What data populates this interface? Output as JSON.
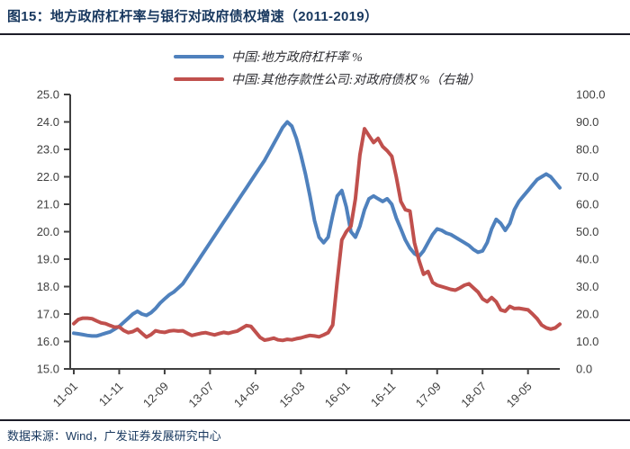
{
  "title": "图15：地方政府杠杆率与银行对政府债权增速（2011-2019）",
  "footer": {
    "source": "数据来源：Wind，广发证券发展研究中心"
  },
  "colors": {
    "title": "#17375E",
    "rule": "#1c1c28",
    "axis": "#404040",
    "blue_series": "#4F81BD",
    "red_series": "#C0504D"
  },
  "chart_data": {
    "type": "line",
    "title": "地方政府杠杆率与银行对政府债权增速（2011-2019）",
    "x_start": "2011-01",
    "x_end": "2019-12",
    "x_tick_labels": [
      "11-01",
      "11-11",
      "12-09",
      "13-07",
      "14-05",
      "15-03",
      "16-01",
      "16-11",
      "17-09",
      "18-07",
      "19-05"
    ],
    "x_tick_month_step": 10,
    "left_axis": {
      "min": 15.0,
      "max": 25.0,
      "step": 1.0,
      "tick_labels": [
        "15.0",
        "16.0",
        "17.0",
        "18.0",
        "19.0",
        "20.0",
        "21.0",
        "22.0",
        "23.0",
        "24.0",
        "25.0"
      ]
    },
    "right_axis": {
      "min": 0.0,
      "max": 100.0,
      "step": 10.0,
      "tick_labels": [
        "0.0",
        "10.0",
        "20.0",
        "30.0",
        "40.0",
        "50.0",
        "60.0",
        "70.0",
        "80.0",
        "90.0",
        "100.0"
      ]
    },
    "grid": false,
    "legend_position": "top-center",
    "series": [
      {
        "name": "中国:地方政府杠杆率 %",
        "axis": "left",
        "color": "#4F81BD",
        "values": [
          16.3,
          16.28,
          16.25,
          16.22,
          16.2,
          16.2,
          16.25,
          16.3,
          16.35,
          16.45,
          16.55,
          16.7,
          16.85,
          17.0,
          17.1,
          17.0,
          16.95,
          17.05,
          17.2,
          17.4,
          17.55,
          17.7,
          17.8,
          17.95,
          18.1,
          18.35,
          18.6,
          18.85,
          19.1,
          19.35,
          19.6,
          19.85,
          20.1,
          20.35,
          20.6,
          20.85,
          21.1,
          21.35,
          21.6,
          21.85,
          22.1,
          22.35,
          22.6,
          22.9,
          23.2,
          23.5,
          23.8,
          24.0,
          23.85,
          23.4,
          22.8,
          22.1,
          21.3,
          20.4,
          19.8,
          19.6,
          19.8,
          20.6,
          21.3,
          21.5,
          20.9,
          20.0,
          19.8,
          20.2,
          20.8,
          21.2,
          21.3,
          21.2,
          21.1,
          21.2,
          21.0,
          20.5,
          20.1,
          19.7,
          19.4,
          19.2,
          19.1,
          19.3,
          19.6,
          19.9,
          20.1,
          20.05,
          19.95,
          19.9,
          19.8,
          19.7,
          19.6,
          19.5,
          19.35,
          19.25,
          19.3,
          19.6,
          20.1,
          20.45,
          20.3,
          20.05,
          20.3,
          20.8,
          21.1,
          21.3,
          21.5,
          21.7,
          21.9,
          22.0,
          22.1,
          22.0,
          21.8,
          21.6
        ]
      },
      {
        "name": "中国:其他存款性公司:对政府债权 %（右轴）",
        "axis": "right",
        "color": "#C0504D",
        "values": [
          16.5,
          18.0,
          18.5,
          18.5,
          18.3,
          17.5,
          16.8,
          16.5,
          15.8,
          15.2,
          15.3,
          14.0,
          13.2,
          13.6,
          14.5,
          13.0,
          11.6,
          12.5,
          13.9,
          13.5,
          13.3,
          13.8,
          14.0,
          13.8,
          13.9,
          13.0,
          12.2,
          12.6,
          13.0,
          13.2,
          12.8,
          12.4,
          12.9,
          13.3,
          13.0,
          13.4,
          13.8,
          14.8,
          15.8,
          15.5,
          13.5,
          11.5,
          10.5,
          10.8,
          11.2,
          10.6,
          10.4,
          10.8,
          10.6,
          11.0,
          11.3,
          11.8,
          12.2,
          12.0,
          11.7,
          12.4,
          13.2,
          16.0,
          32.0,
          47.0,
          50.0,
          52.0,
          62.0,
          78.0,
          87.5,
          85.0,
          82.5,
          84.0,
          81.0,
          79.5,
          77.5,
          70.0,
          61.0,
          58.0,
          57.5,
          46.0,
          39.5,
          34.5,
          35.5,
          31.5,
          30.5,
          30.0,
          29.5,
          29.0,
          28.7,
          29.5,
          30.5,
          31.0,
          29.5,
          28.0,
          25.5,
          24.5,
          26.0,
          24.5,
          21.5,
          21.0,
          22.8,
          22.0,
          22.1,
          21.8,
          21.5,
          20.0,
          18.3,
          16.0,
          15.0,
          14.5,
          15.0,
          16.3
        ]
      }
    ]
  }
}
